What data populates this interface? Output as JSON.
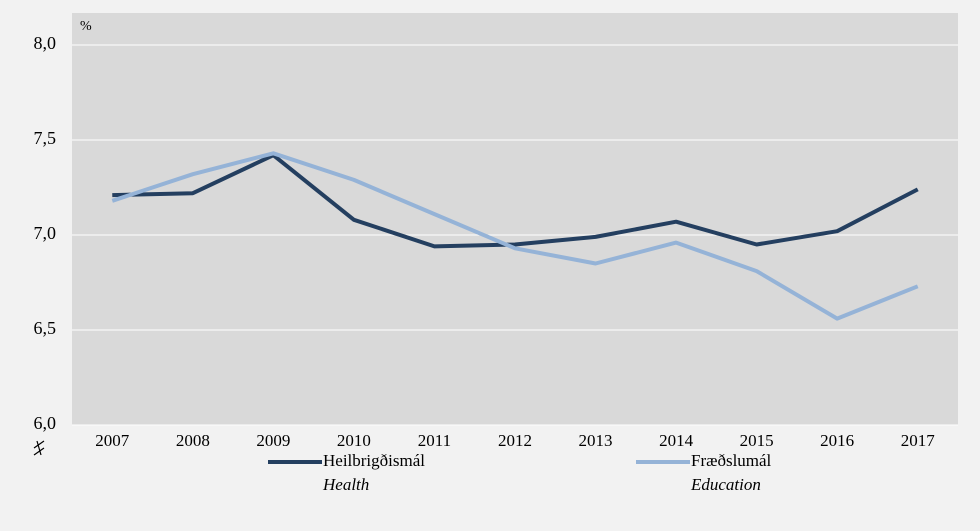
{
  "chart_data": {
    "type": "line",
    "y_unit": "%",
    "categories": [
      "2007",
      "2008",
      "2009",
      "2010",
      "2011",
      "2012",
      "2013",
      "2014",
      "2015",
      "2016",
      "2017"
    ],
    "series": [
      {
        "name": "Heilbrigðismál",
        "name_en": "Health",
        "color": "#243f60",
        "values": [
          7.21,
          7.22,
          7.42,
          7.08,
          6.94,
          6.95,
          6.99,
          7.07,
          6.95,
          7.02,
          7.24
        ]
      },
      {
        "name": "Fræðslumál",
        "name_en": "Education",
        "color": "#95b3d7",
        "values": [
          7.18,
          7.32,
          7.43,
          7.29,
          7.11,
          6.93,
          6.85,
          6.96,
          6.81,
          6.56,
          6.73
        ]
      }
    ],
    "ylim": [
      6,
      8
    ],
    "yticks": [
      {
        "value": 6,
        "label": "6,0"
      },
      {
        "value": 6.5,
        "label": "6,5"
      },
      {
        "value": 7,
        "label": "7,0"
      },
      {
        "value": 7.5,
        "label": "7,5"
      },
      {
        "value": 8,
        "label": "8,0"
      }
    ],
    "grid": true
  }
}
